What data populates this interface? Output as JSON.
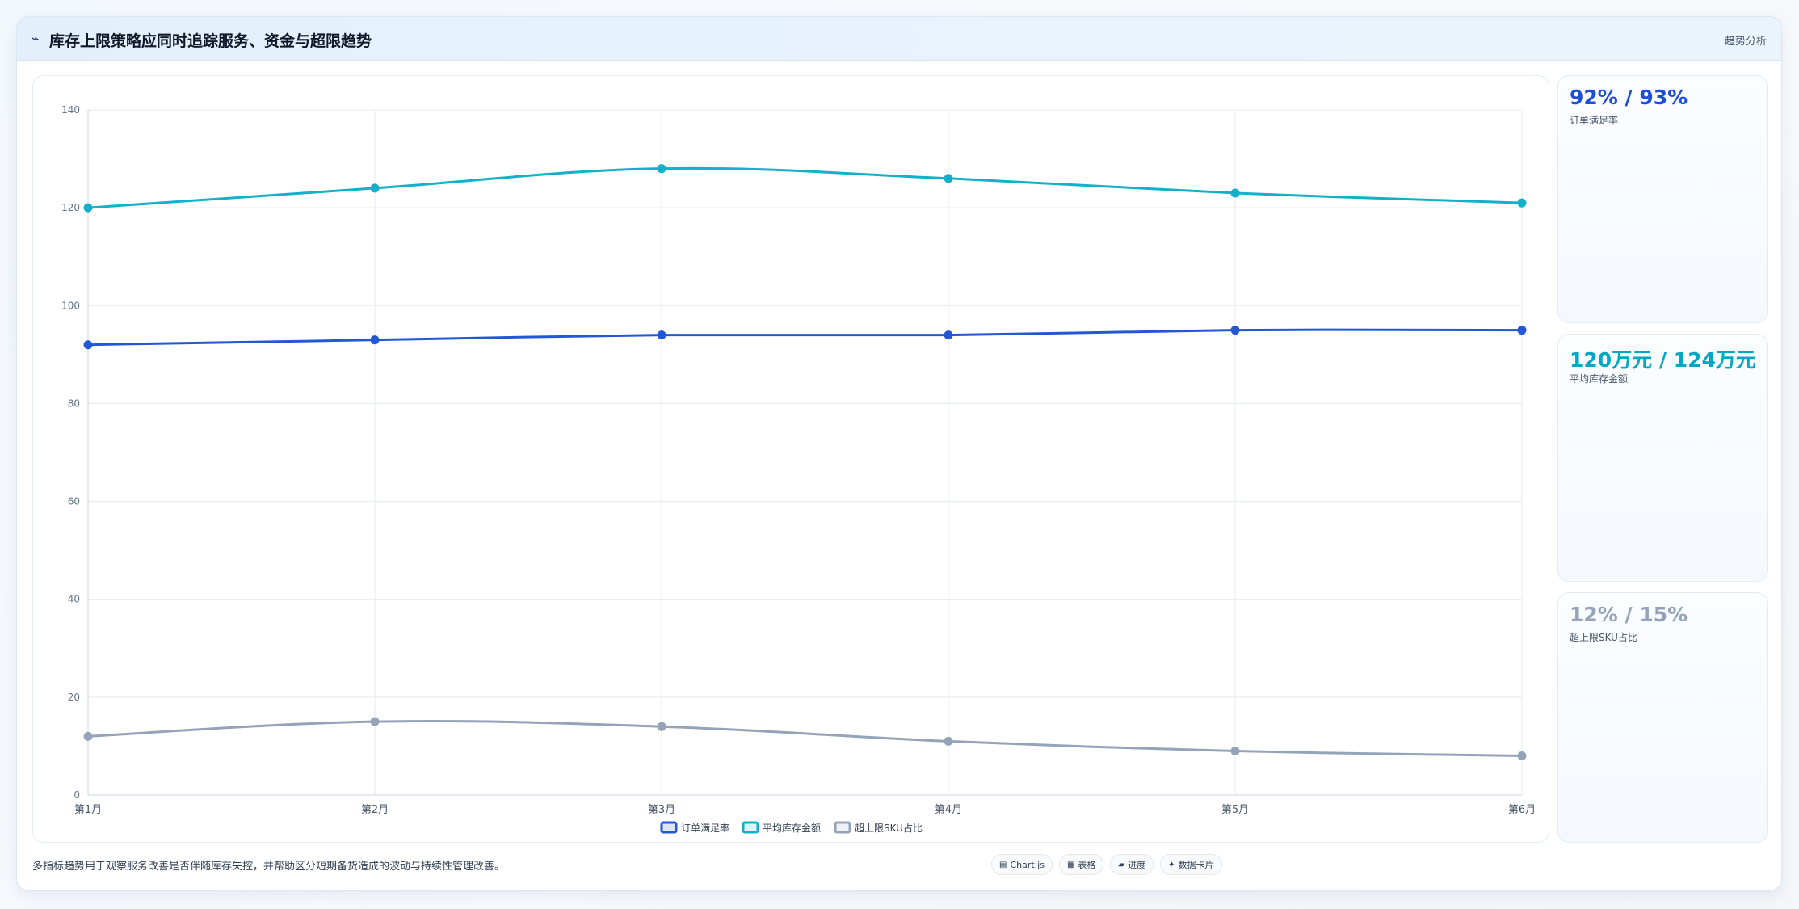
{
  "header": {
    "title": "库存上限策略应同时追踪服务、资金与超限趋势",
    "tag": "趋势分析"
  },
  "kpis": [
    {
      "value": "92% / 93%",
      "label": "订单满足率",
      "color": "#1d4ed8"
    },
    {
      "value": "120万元 / 124万元",
      "label": "平均库存金额",
      "color": "#06a7c2"
    },
    {
      "value": "12% / 15%",
      "label": "超上限SKU占比",
      "color": "#94a3b8"
    }
  ],
  "footer": {
    "note": "多指标趋势用于观察服务改善是否伴随库存失控，并帮助区分短期备货造成的波动与持续性管理改善。",
    "chips": [
      {
        "icon": "chart-icon",
        "glyph": "▤",
        "label": "Chart.js"
      },
      {
        "icon": "table-icon",
        "glyph": "▦",
        "label": "表格"
      },
      {
        "icon": "progress-icon",
        "glyph": "▰",
        "label": "进度"
      },
      {
        "icon": "card-icon",
        "glyph": "✦",
        "label": "数据卡片"
      }
    ]
  },
  "chart_data": {
    "type": "line",
    "categories": [
      "第1月",
      "第2月",
      "第3月",
      "第4月",
      "第5月",
      "第6月"
    ],
    "series": [
      {
        "name": "订单满足率",
        "values": [
          92,
          93,
          94,
          94,
          95,
          95
        ],
        "color": "#2357d6"
      },
      {
        "name": "平均库存金额",
        "values": [
          120,
          124,
          128,
          126,
          123,
          121
        ],
        "color": "#12b0c9"
      },
      {
        "name": "超上限SKU占比",
        "values": [
          12,
          15,
          14,
          11,
          9,
          8
        ],
        "color": "#94a3b8"
      }
    ],
    "ylim": [
      0,
      140
    ],
    "yticks": [
      0,
      20,
      40,
      60,
      80,
      100,
      120,
      140
    ],
    "grid": true,
    "legend": "bottom"
  }
}
